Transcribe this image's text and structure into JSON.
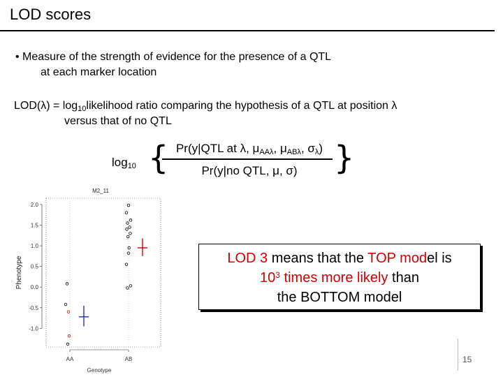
{
  "title": "LOD scores",
  "bullet": {
    "line1": "• Measure of the strength of evidence for the presence of a QTL",
    "line2": "at each marker location"
  },
  "lod_definition": {
    "prefix": "LOD(λ) = log",
    "sub": "10",
    "rest": "likelihood ratio comparing the hypothesis of a QTL at position λ",
    "line2": "versus that of no QTL"
  },
  "formula": {
    "log": "log",
    "log_sub": "10",
    "numerator_text": "Pr(y|QTL at λ, μ",
    "numerator_sub1": "AAλ",
    "numerator_sep": ", μ",
    "numerator_sub2": "ABλ",
    "numerator_sep2": ", σ",
    "numerator_sub3": "λ",
    "numerator_end": ")",
    "denominator": "Pr(y|no QTL, μ, σ)"
  },
  "callout": {
    "part1": "LOD 3",
    "part2": " means that the ",
    "part3": "TOP",
    "part4": " mod",
    "part5": "el is",
    "line2a": "10",
    "line2sup": "3",
    "line2b": " times more likely",
    "line2c": " than",
    "line3": "the BOTTOM model"
  },
  "page_number": "15",
  "chart_data": {
    "type": "scatter",
    "title": "M2_11",
    "xlabel": "Genotype",
    "ylabel": "Phenotype",
    "categories": [
      "AA",
      "AB"
    ],
    "yticks": [
      "-1.0",
      "-0.5",
      "0.0",
      "0.5",
      "1.0",
      "1.5",
      "2.0"
    ],
    "ylim": [
      -1.45,
      2.15
    ],
    "series": [
      {
        "group": "AA",
        "points": [
          {
            "y": 0.08,
            "color": "#000000"
          },
          {
            "y": -0.42,
            "color": "#000000"
          },
          {
            "y": -0.6,
            "color": "#d40000"
          },
          {
            "y": -1.18,
            "color": "#d40000"
          },
          {
            "y": -1.38,
            "color": "#000000"
          }
        ],
        "mean": -0.72,
        "se_low": -0.95,
        "se_high": -0.45,
        "summary_color": "#1a2fbf"
      },
      {
        "group": "AB",
        "points": [
          {
            "y": 1.98,
            "color": "#000000"
          },
          {
            "y": 1.8,
            "color": "#000000"
          },
          {
            "y": 1.62,
            "color": "#000000"
          },
          {
            "y": 1.55,
            "color": "#000000"
          },
          {
            "y": 1.45,
            "color": "#000000"
          },
          {
            "y": 1.4,
            "color": "#000000"
          },
          {
            "y": 1.3,
            "color": "#000000"
          },
          {
            "y": 1.22,
            "color": "#000000"
          },
          {
            "y": 0.95,
            "color": "#000000"
          },
          {
            "y": 0.82,
            "color": "#000000"
          },
          {
            "y": 0.55,
            "color": "#000000"
          },
          {
            "y": 0.03,
            "color": "#000000"
          },
          {
            "y": -0.02,
            "color": "#000000"
          }
        ],
        "mean": 0.95,
        "se_low": 0.75,
        "se_high": 1.18,
        "summary_color": "#d40000"
      }
    ]
  }
}
